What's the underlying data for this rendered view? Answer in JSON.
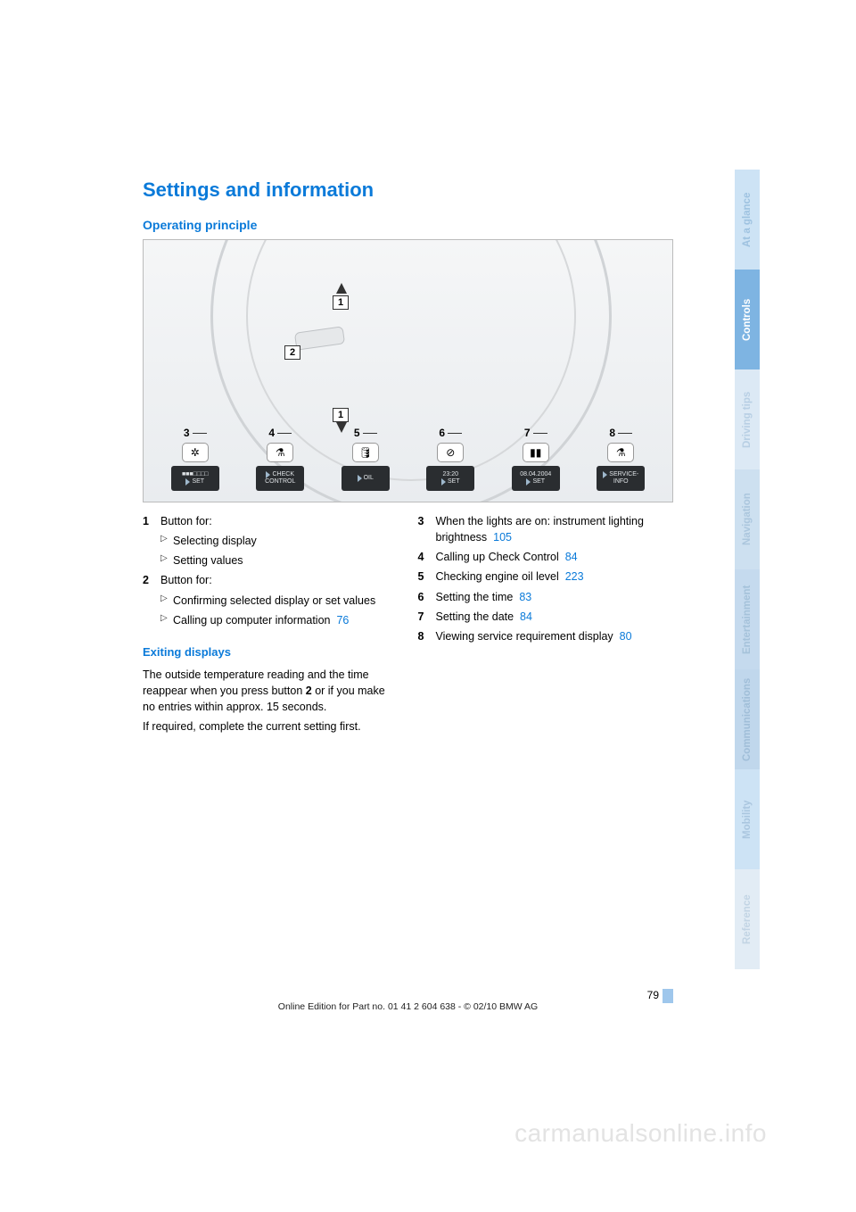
{
  "title": "Settings and information",
  "subheading": "Operating principle",
  "diagram": {
    "callouts": {
      "c1": "1",
      "c2": "2"
    },
    "panels": [
      {
        "num": "3",
        "icon": "✲",
        "label_top": "■■■□□□□",
        "label_bottom": "SET"
      },
      {
        "num": "4",
        "icon": "⚗",
        "label_top": "CHECK",
        "label_bottom": "CONTROL"
      },
      {
        "num": "5",
        "icon": "🛢",
        "label_top": "",
        "label_bottom": "OIL"
      },
      {
        "num": "6",
        "icon": "⊘",
        "label_top": "23:20",
        "label_bottom": "SET"
      },
      {
        "num": "7",
        "icon": "▮▮",
        "label_top": "08.04.2004",
        "label_bottom": "SET"
      },
      {
        "num": "8",
        "icon": "⚗",
        "label_top": "SERVICE-",
        "label_bottom": "INFO"
      }
    ]
  },
  "left_items": [
    {
      "n": "1",
      "text": "Button for:",
      "sub": [
        {
          "text": "Selecting display"
        },
        {
          "text": "Setting values"
        }
      ]
    },
    {
      "n": "2",
      "text": "Button for:",
      "sub": [
        {
          "text": "Confirming selected display or set values"
        },
        {
          "text": "Calling up computer information",
          "ref": "76"
        }
      ]
    }
  ],
  "exiting": {
    "heading": "Exiting displays",
    "p1a": "The outside temperature reading and the time reappear when you press button ",
    "p1_bold": "2",
    "p1b": " or if you make no entries within approx. 15 seconds.",
    "p2": "If required, complete the current setting first."
  },
  "right_items": [
    {
      "n": "3",
      "text": "When the lights are on: instrument lighting brightness",
      "ref": "105"
    },
    {
      "n": "4",
      "text": "Calling up Check Control",
      "ref": "84"
    },
    {
      "n": "5",
      "text": "Checking engine oil level",
      "ref": "223"
    },
    {
      "n": "6",
      "text": "Setting the time",
      "ref": "83"
    },
    {
      "n": "7",
      "text": "Setting the date",
      "ref": "84"
    },
    {
      "n": "8",
      "text": "Viewing service requirement display",
      "ref": "80"
    }
  ],
  "tabs": [
    {
      "label": "At a glance",
      "bg": "#cde3f5",
      "fg": "#9ec2e0"
    },
    {
      "label": "Controls",
      "bg": "#7eb4e2",
      "fg": "#ffffff"
    },
    {
      "label": "Driving tips",
      "bg": "#dce9f5",
      "fg": "#b8cfe4"
    },
    {
      "label": "Navigation",
      "bg": "#cde0f0",
      "fg": "#abc6dd"
    },
    {
      "label": "Entertainment",
      "bg": "#c5daee",
      "fg": "#a5c2da"
    },
    {
      "label": "Communications",
      "bg": "#c0d7ec",
      "fg": "#a0bed8"
    },
    {
      "label": "Mobility",
      "bg": "#cde3f5",
      "fg": "#aac6df"
    },
    {
      "label": "Reference",
      "bg": "#e2ecf5",
      "fg": "#c2d4e4"
    }
  ],
  "page_number": "79",
  "footer": "Online Edition for Part no. 01 41 2 604 638 - © 02/10 BMW AG",
  "watermark": "carmanualsonline.info"
}
